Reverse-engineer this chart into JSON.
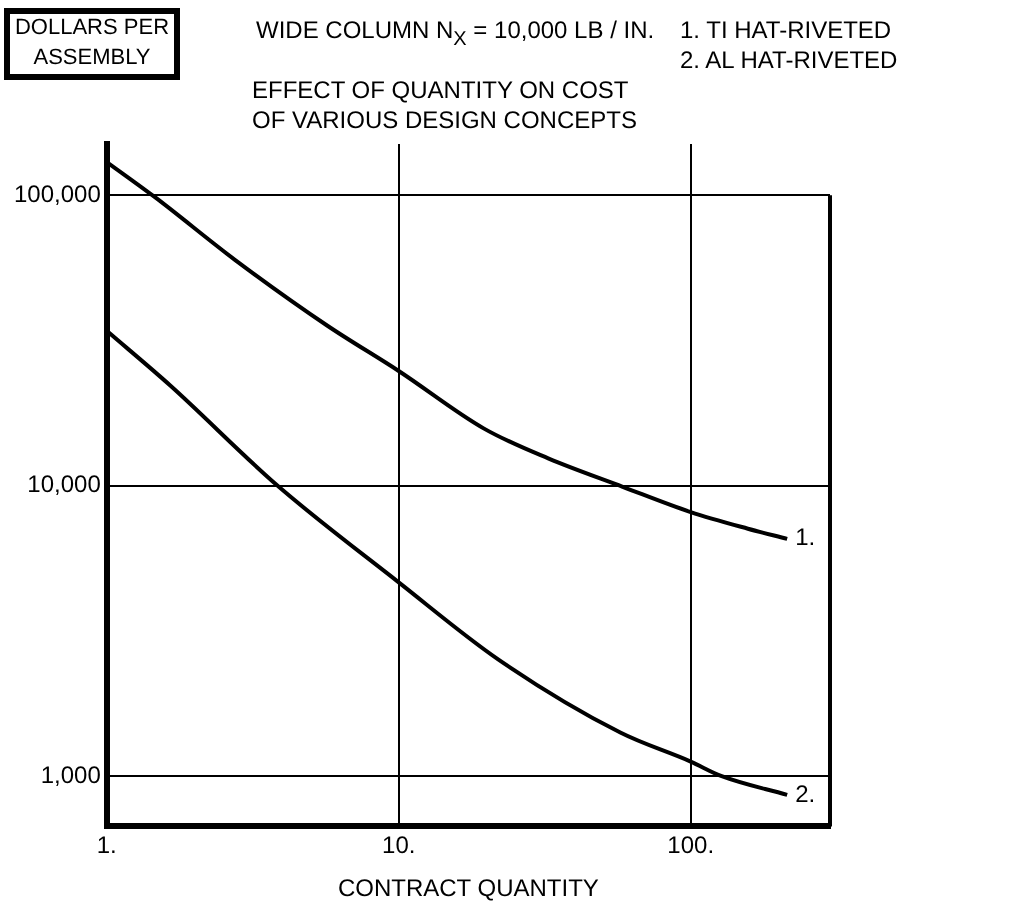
{
  "chart_data": {
    "type": "line",
    "title": "EFFECT OF QUANTITY ON COST OF VARIOUS DESIGN CONCEPTS",
    "subtitle": "WIDE COLUMN N$_{X}$ = 10,000 LB / IN.",
    "xlabel": "CONTRACT QUANTITY",
    "ylabel": "DOLLARS PER ASSEMBLY",
    "log": "xy",
    "grid": true,
    "legend": "right",
    "marker": "none",
    "line_style": "solid",
    "xlim": [
      1,
      300
    ],
    "xticks": [
      {
        "value": 1,
        "label": "1."
      },
      {
        "value": 10,
        "label": "10."
      },
      {
        "value": 100,
        "label": "100."
      }
    ],
    "ylim": [
      670,
      150000
    ],
    "yticks": [
      {
        "value": 1000,
        "label": "1,000"
      },
      {
        "value": 10000,
        "label": "10,000"
      },
      {
        "value": 100000,
        "label": "100,000"
      }
    ],
    "series": [
      {
        "name": "1.",
        "color": "#000000",
        "x": [
          1,
          1.47,
          2.74,
          5.7,
          10,
          19.6,
          32.5,
          58.5,
          100,
          157,
          214
        ],
        "values": [
          130000,
          98000,
          60000,
          35500,
          24800,
          15700,
          12400,
          9900,
          8100,
          7100,
          6550
        ]
      },
      {
        "name": "2.",
        "color": "#000000",
        "x": [
          1,
          1.65,
          3.84,
          10,
          21.9,
          57.4,
          100,
          127,
          214
        ],
        "values": [
          34100,
          22100,
          10000,
          4640,
          2520,
          1410,
          1120,
          1000,
          860
        ]
      }
    ],
    "annotations": [
      "1. TI HAT-RIVETED",
      "2. AL HAT-RIVETED"
    ]
  }
}
